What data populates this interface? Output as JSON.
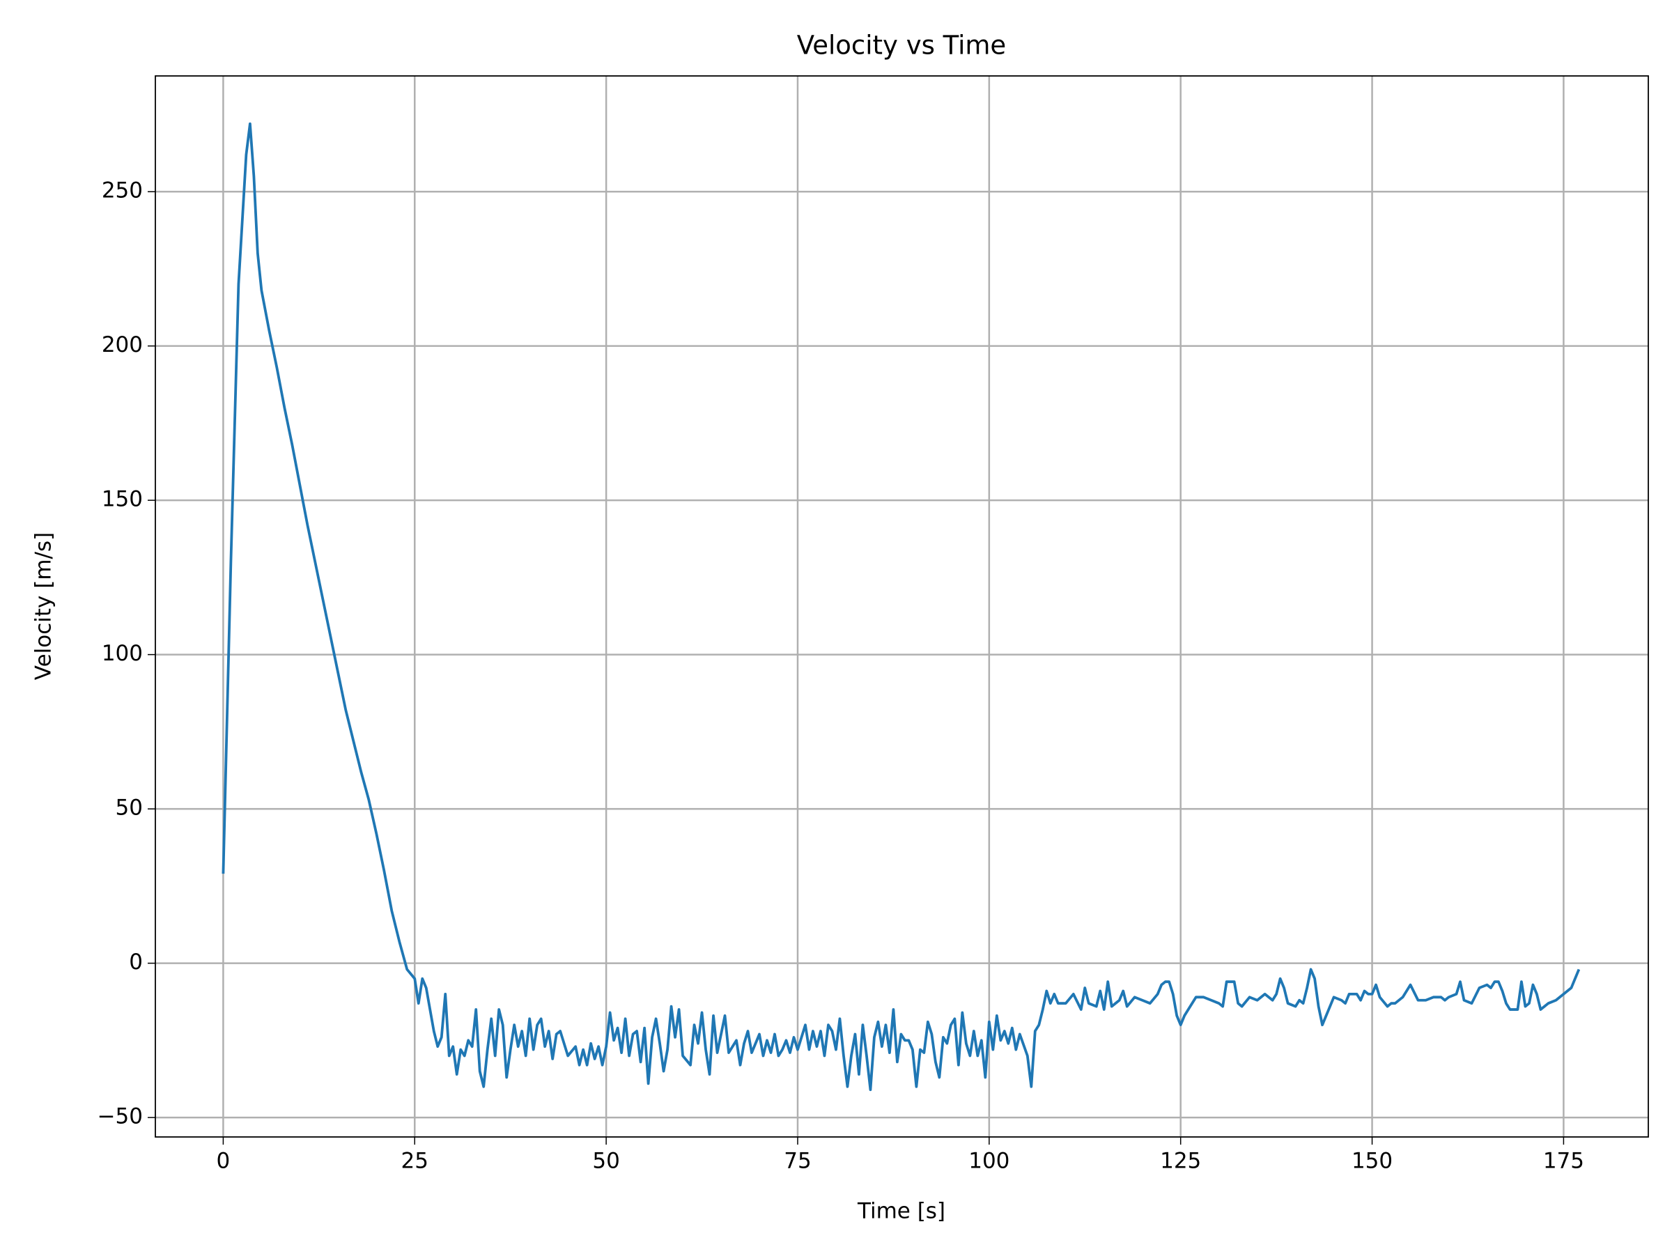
{
  "chart_data": {
    "type": "line",
    "title": "Velocity vs Time",
    "xlabel": "Time [s]",
    "ylabel": "Velocity [m/s]",
    "color": "#1f77b4",
    "grid": true,
    "xlim": [
      -8.86,
      186.06
    ],
    "ylim": [
      -56.3,
      287.5
    ],
    "xticks": [
      0,
      25,
      50,
      75,
      100,
      125,
      150,
      175
    ],
    "yticks": [
      {
        "value": -50,
        "label": "−50"
      },
      0,
      50,
      100,
      150,
      200,
      250
    ],
    "x": [
      0,
      1,
      2,
      3,
      3.5,
      4,
      4.5,
      5,
      6,
      7,
      8,
      9,
      10,
      11,
      12,
      13,
      14,
      15,
      16,
      17,
      18,
      19,
      20,
      21,
      22,
      23,
      24,
      25,
      25.5,
      26,
      26.5,
      27,
      27.5,
      28,
      28.5,
      29,
      29.5,
      30,
      30.5,
      31,
      31.5,
      32,
      32.5,
      33,
      33.5,
      34,
      34.5,
      35,
      35.5,
      36,
      36.5,
      37,
      37.5,
      38,
      38.5,
      39,
      39.5,
      40,
      40.5,
      41,
      41.5,
      42,
      42.5,
      43,
      43.5,
      44,
      45,
      46,
      46.5,
      47,
      47.5,
      48,
      48.5,
      49,
      49.5,
      50,
      50.5,
      51,
      51.5,
      52,
      52.5,
      53,
      53.5,
      54,
      54.5,
      55,
      55.5,
      56,
      56.5,
      57,
      57.5,
      58,
      58.5,
      59,
      59.5,
      60,
      61,
      61.5,
      62,
      62.5,
      63,
      63.5,
      64,
      64.5,
      65,
      65.5,
      66,
      67,
      67.5,
      68,
      68.5,
      69,
      70,
      70.5,
      71,
      71.5,
      72,
      72.5,
      73,
      73.5,
      74,
      74.5,
      75,
      75.5,
      76,
      76.5,
      77,
      77.5,
      78,
      78.5,
      79,
      79.5,
      80,
      80.5,
      81,
      81.5,
      82,
      82.5,
      83,
      83.5,
      84,
      84.5,
      85,
      85.5,
      86,
      86.5,
      87,
      87.5,
      88,
      88.5,
      89,
      89.5,
      90,
      90.5,
      91,
      91.5,
      92,
      92.5,
      93,
      93.5,
      94,
      94.5,
      95,
      95.5,
      96,
      96.5,
      97,
      97.5,
      98,
      98.5,
      99,
      99.5,
      100,
      100.5,
      101,
      101.5,
      102,
      102.5,
      103,
      103.5,
      104,
      105,
      105.5,
      106,
      106.5,
      107,
      107.5,
      108,
      108.5,
      109,
      110,
      111,
      112,
      112.5,
      113,
      114,
      114.5,
      115,
      115.5,
      116,
      117,
      117.5,
      118,
      119,
      120,
      121,
      122,
      122.5,
      123,
      123.5,
      124,
      124.5,
      125,
      125.5,
      126,
      127,
      128,
      129,
      130,
      130.5,
      131,
      132,
      132.5,
      133,
      134,
      135,
      136,
      137,
      137.5,
      138,
      138.5,
      139,
      140,
      140.5,
      141,
      141.5,
      142,
      142.5,
      143,
      143.5,
      144,
      145,
      146,
      146.5,
      147,
      148,
      148.5,
      149,
      149.5,
      150,
      150.5,
      151,
      152,
      152.5,
      153,
      154,
      155,
      156,
      157,
      158,
      159,
      159.5,
      160,
      161,
      161.5,
      162,
      163,
      164,
      165,
      165.5,
      166,
      166.5,
      167,
      167.5,
      168,
      169,
      169.5,
      170,
      170.5,
      171,
      171.5,
      172,
      172.5,
      173,
      174,
      175,
      176,
      176.5,
      177
    ],
    "values": [
      29,
      130,
      220,
      262,
      272,
      255,
      230,
      218,
      205,
      193,
      180,
      168,
      155,
      142,
      130,
      118,
      106,
      94,
      82,
      72,
      62,
      53,
      42,
      30,
      17,
      7,
      -2,
      -5,
      -13,
      -5,
      -8,
      -15,
      -22,
      -27,
      -24,
      -10,
      -30,
      -27,
      -36,
      -28,
      -30,
      -25,
      -27,
      -15,
      -35,
      -40,
      -28,
      -18,
      -30,
      -15,
      -20,
      -37,
      -28,
      -20,
      -27,
      -22,
      -30,
      -18,
      -28,
      -20,
      -18,
      -27,
      -22,
      -31,
      -23,
      -22,
      -30,
      -27,
      -33,
      -28,
      -33,
      -26,
      -31,
      -27,
      -33,
      -27,
      -16,
      -25,
      -21,
      -29,
      -18,
      -30,
      -23,
      -22,
      -32,
      -21,
      -39,
      -24,
      -18,
      -26,
      -35,
      -28,
      -14,
      -24,
      -15,
      -30,
      -33,
      -20,
      -26,
      -16,
      -28,
      -36,
      -17,
      -29,
      -23,
      -17,
      -29,
      -25,
      -33,
      -26,
      -22,
      -29,
      -23,
      -30,
      -25,
      -29,
      -23,
      -30,
      -28,
      -25,
      -29,
      -24,
      -28,
      -24,
      -20,
      -28,
      -22,
      -27,
      -22,
      -30,
      -20,
      -22,
      -28,
      -18,
      -30,
      -40,
      -30,
      -23,
      -36,
      -20,
      -30,
      -41,
      -24,
      -19,
      -27,
      -20,
      -29,
      -15,
      -32,
      -23,
      -25,
      -25,
      -28,
      -40,
      -28,
      -29,
      -19,
      -23,
      -32,
      -37,
      -24,
      -26,
      -20,
      -18,
      -33,
      -16,
      -26,
      -30,
      -22,
      -30,
      -25,
      -37,
      -19,
      -28,
      -17,
      -25,
      -22,
      -26,
      -21,
      -28,
      -23,
      -30,
      -40,
      -22,
      -20,
      -15,
      -9,
      -13,
      -10,
      -13,
      -13,
      -10,
      -15,
      -8,
      -13,
      -14,
      -9,
      -15,
      -6,
      -14,
      -12,
      -9,
      -14,
      -11,
      -12,
      -13,
      -10,
      -7,
      -6,
      -6,
      -10,
      -17,
      -20,
      -17,
      -15,
      -11,
      -11,
      -12,
      -13,
      -14,
      -6,
      -6,
      -13,
      -14,
      -11,
      -12,
      -10,
      -12,
      -10,
      -5,
      -8,
      -13,
      -14,
      -12,
      -13,
      -8,
      -2,
      -5,
      -14,
      -20,
      -17,
      -11,
      -12,
      -13,
      -10,
      -10,
      -12,
      -9,
      -10,
      -10,
      -7,
      -11,
      -14,
      -13,
      -13,
      -11,
      -7,
      -12,
      -12,
      -11,
      -11,
      -12,
      -11,
      -10,
      -6,
      -12,
      -13,
      -8,
      -7,
      -8,
      -6,
      -6,
      -9,
      -13,
      -15,
      -15,
      -6,
      -14,
      -13,
      -7,
      -10,
      -15,
      -14,
      -13,
      -12,
      -10,
      -8,
      -5,
      -2
    ]
  }
}
